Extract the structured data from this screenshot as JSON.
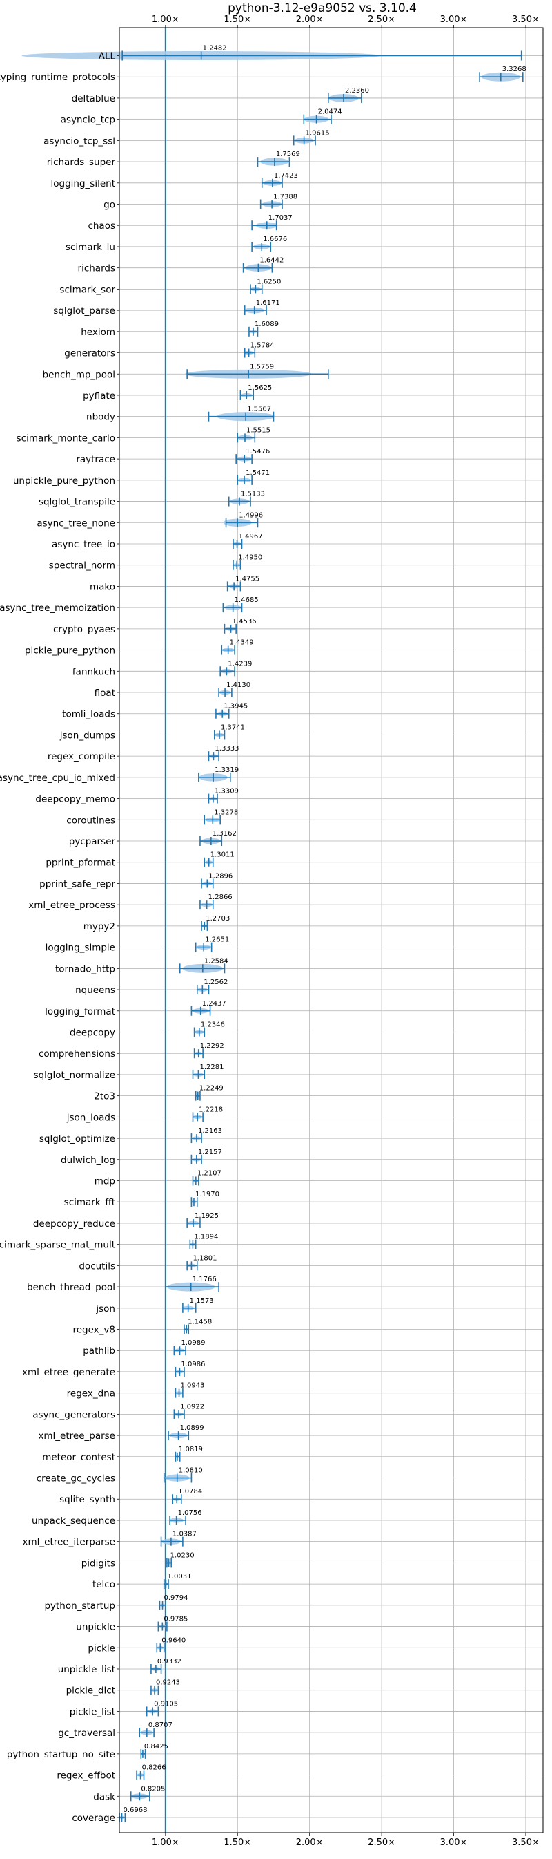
{
  "chart_data": {
    "type": "violin",
    "title": "python-3.12-e9a9052 vs. 3.10.4",
    "xlabel": "",
    "ylabel": "",
    "xlim": [
      0.68,
      3.62
    ],
    "xticks": [
      1.0,
      1.5,
      2.0,
      2.5,
      3.0,
      3.5
    ],
    "xtick_labels": [
      "1.00×",
      "1.50×",
      "2.00×",
      "2.50×",
      "3.00×",
      "3.50×"
    ],
    "xticks_position": "top and bottom",
    "grid": true,
    "reference_line": 1.0,
    "color": "#1f77b4",
    "violin_color": "#a6c8e8",
    "benchmarks": [
      {
        "name": "ALL",
        "value": 1.2482,
        "min": 0.7,
        "max": 3.47
      },
      {
        "name": "typing_runtime_protocols",
        "value": 3.3268,
        "min": 3.18,
        "max": 3.48
      },
      {
        "name": "deltablue",
        "value": 2.236,
        "min": 2.13,
        "max": 2.36
      },
      {
        "name": "asyncio_tcp",
        "value": 2.0474,
        "min": 1.96,
        "max": 2.15
      },
      {
        "name": "asyncio_tcp_ssl",
        "value": 1.9615,
        "min": 1.89,
        "max": 2.04
      },
      {
        "name": "richards_super",
        "value": 1.7569,
        "min": 1.64,
        "max": 1.86
      },
      {
        "name": "logging_silent",
        "value": 1.7423,
        "min": 1.67,
        "max": 1.81
      },
      {
        "name": "go",
        "value": 1.7388,
        "min": 1.66,
        "max": 1.81
      },
      {
        "name": "chaos",
        "value": 1.7037,
        "min": 1.6,
        "max": 1.77
      },
      {
        "name": "scimark_lu",
        "value": 1.6676,
        "min": 1.6,
        "max": 1.73
      },
      {
        "name": "richards",
        "value": 1.6442,
        "min": 1.54,
        "max": 1.74
      },
      {
        "name": "scimark_sor",
        "value": 1.625,
        "min": 1.59,
        "max": 1.67
      },
      {
        "name": "sqlglot_parse",
        "value": 1.6171,
        "min": 1.55,
        "max": 1.7
      },
      {
        "name": "hexiom",
        "value": 1.6089,
        "min": 1.58,
        "max": 1.64
      },
      {
        "name": "generators",
        "value": 1.5784,
        "min": 1.55,
        "max": 1.62
      },
      {
        "name": "bench_mp_pool",
        "value": 1.5759,
        "min": 1.15,
        "max": 2.13
      },
      {
        "name": "pyflate",
        "value": 1.5625,
        "min": 1.52,
        "max": 1.61
      },
      {
        "name": "nbody",
        "value": 1.5567,
        "min": 1.3,
        "max": 1.75
      },
      {
        "name": "scimark_monte_carlo",
        "value": 1.5515,
        "min": 1.5,
        "max": 1.62
      },
      {
        "name": "raytrace",
        "value": 1.5476,
        "min": 1.49,
        "max": 1.6
      },
      {
        "name": "unpickle_pure_python",
        "value": 1.5471,
        "min": 1.5,
        "max": 1.6
      },
      {
        "name": "sqlglot_transpile",
        "value": 1.5133,
        "min": 1.44,
        "max": 1.59
      },
      {
        "name": "async_tree_none",
        "value": 1.4996,
        "min": 1.42,
        "max": 1.64
      },
      {
        "name": "async_tree_io",
        "value": 1.4967,
        "min": 1.47,
        "max": 1.53
      },
      {
        "name": "spectral_norm",
        "value": 1.495,
        "min": 1.47,
        "max": 1.52
      },
      {
        "name": "mako",
        "value": 1.4755,
        "min": 1.43,
        "max": 1.52
      },
      {
        "name": "async_tree_memoization",
        "value": 1.4685,
        "min": 1.4,
        "max": 1.53
      },
      {
        "name": "crypto_pyaes",
        "value": 1.4536,
        "min": 1.41,
        "max": 1.49
      },
      {
        "name": "pickle_pure_python",
        "value": 1.4349,
        "min": 1.39,
        "max": 1.48
      },
      {
        "name": "fannkuch",
        "value": 1.4239,
        "min": 1.38,
        "max": 1.48
      },
      {
        "name": "float",
        "value": 1.413,
        "min": 1.37,
        "max": 1.46
      },
      {
        "name": "tomli_loads",
        "value": 1.3945,
        "min": 1.35,
        "max": 1.44
      },
      {
        "name": "json_dumps",
        "value": 1.3741,
        "min": 1.34,
        "max": 1.41
      },
      {
        "name": "regex_compile",
        "value": 1.3333,
        "min": 1.3,
        "max": 1.37
      },
      {
        "name": "async_tree_cpu_io_mixed",
        "value": 1.3319,
        "min": 1.23,
        "max": 1.45
      },
      {
        "name": "deepcopy_memo",
        "value": 1.3309,
        "min": 1.3,
        "max": 1.36
      },
      {
        "name": "coroutines",
        "value": 1.3278,
        "min": 1.27,
        "max": 1.38
      },
      {
        "name": "pycparser",
        "value": 1.3162,
        "min": 1.24,
        "max": 1.39
      },
      {
        "name": "pprint_pformat",
        "value": 1.3011,
        "min": 1.27,
        "max": 1.33
      },
      {
        "name": "pprint_safe_repr",
        "value": 1.2896,
        "min": 1.25,
        "max": 1.33
      },
      {
        "name": "xml_etree_process",
        "value": 1.2866,
        "min": 1.24,
        "max": 1.33
      },
      {
        "name": "mypy2",
        "value": 1.2703,
        "min": 1.25,
        "max": 1.29
      },
      {
        "name": "logging_simple",
        "value": 1.2651,
        "min": 1.21,
        "max": 1.32
      },
      {
        "name": "tornado_http",
        "value": 1.2584,
        "min": 1.1,
        "max": 1.41
      },
      {
        "name": "nqueens",
        "value": 1.2562,
        "min": 1.22,
        "max": 1.3
      },
      {
        "name": "logging_format",
        "value": 1.2437,
        "min": 1.18,
        "max": 1.31
      },
      {
        "name": "deepcopy",
        "value": 1.2346,
        "min": 1.2,
        "max": 1.27
      },
      {
        "name": "comprehensions",
        "value": 1.2292,
        "min": 1.2,
        "max": 1.26
      },
      {
        "name": "sqlglot_normalize",
        "value": 1.2281,
        "min": 1.19,
        "max": 1.27
      },
      {
        "name": "2to3",
        "value": 1.2249,
        "min": 1.21,
        "max": 1.24
      },
      {
        "name": "json_loads",
        "value": 1.2218,
        "min": 1.19,
        "max": 1.26
      },
      {
        "name": "sqlglot_optimize",
        "value": 1.2163,
        "min": 1.18,
        "max": 1.25
      },
      {
        "name": "dulwich_log",
        "value": 1.2157,
        "min": 1.18,
        "max": 1.25
      },
      {
        "name": "mdp",
        "value": 1.2107,
        "min": 1.19,
        "max": 1.23
      },
      {
        "name": "scimark_fft",
        "value": 1.197,
        "min": 1.18,
        "max": 1.22
      },
      {
        "name": "deepcopy_reduce",
        "value": 1.1925,
        "min": 1.15,
        "max": 1.24
      },
      {
        "name": "scimark_sparse_mat_mult",
        "value": 1.1894,
        "min": 1.17,
        "max": 1.21
      },
      {
        "name": "docutils",
        "value": 1.1801,
        "min": 1.15,
        "max": 1.22
      },
      {
        "name": "bench_thread_pool",
        "value": 1.1766,
        "min": 1.0,
        "max": 1.37
      },
      {
        "name": "json",
        "value": 1.1573,
        "min": 1.12,
        "max": 1.21
      },
      {
        "name": "regex_v8",
        "value": 1.1458,
        "min": 1.13,
        "max": 1.16
      },
      {
        "name": "pathlib",
        "value": 1.0989,
        "min": 1.06,
        "max": 1.14
      },
      {
        "name": "xml_etree_generate",
        "value": 1.0986,
        "min": 1.07,
        "max": 1.13
      },
      {
        "name": "regex_dna",
        "value": 1.0943,
        "min": 1.07,
        "max": 1.12
      },
      {
        "name": "async_generators",
        "value": 1.0922,
        "min": 1.06,
        "max": 1.13
      },
      {
        "name": "xml_etree_parse",
        "value": 1.0899,
        "min": 1.02,
        "max": 1.16
      },
      {
        "name": "meteor_contest",
        "value": 1.0819,
        "min": 1.07,
        "max": 1.1
      },
      {
        "name": "create_gc_cycles",
        "value": 1.081,
        "min": 0.99,
        "max": 1.18
      },
      {
        "name": "sqlite_synth",
        "value": 1.0784,
        "min": 1.05,
        "max": 1.11
      },
      {
        "name": "unpack_sequence",
        "value": 1.0756,
        "min": 1.03,
        "max": 1.14
      },
      {
        "name": "xml_etree_iterparse",
        "value": 1.0387,
        "min": 0.97,
        "max": 1.12
      },
      {
        "name": "pidigits",
        "value": 1.023,
        "min": 1.01,
        "max": 1.04
      },
      {
        "name": "telco",
        "value": 1.0031,
        "min": 0.99,
        "max": 1.02
      },
      {
        "name": "python_startup",
        "value": 0.9794,
        "min": 0.96,
        "max": 1.0
      },
      {
        "name": "unpickle",
        "value": 0.9785,
        "min": 0.95,
        "max": 1.01
      },
      {
        "name": "pickle",
        "value": 0.964,
        "min": 0.94,
        "max": 0.99
      },
      {
        "name": "unpickle_list",
        "value": 0.9332,
        "min": 0.9,
        "max": 0.97
      },
      {
        "name": "pickle_dict",
        "value": 0.9243,
        "min": 0.9,
        "max": 0.95
      },
      {
        "name": "pickle_list",
        "value": 0.9105,
        "min": 0.87,
        "max": 0.95
      },
      {
        "name": "gc_traversal",
        "value": 0.8707,
        "min": 0.82,
        "max": 0.92
      },
      {
        "name": "python_startup_no_site",
        "value": 0.8425,
        "min": 0.83,
        "max": 0.86
      },
      {
        "name": "regex_effbot",
        "value": 0.8266,
        "min": 0.8,
        "max": 0.85
      },
      {
        "name": "dask",
        "value": 0.8205,
        "min": 0.76,
        "max": 0.89
      },
      {
        "name": "coverage",
        "value": 0.6968,
        "min": 0.68,
        "max": 0.72
      }
    ]
  }
}
